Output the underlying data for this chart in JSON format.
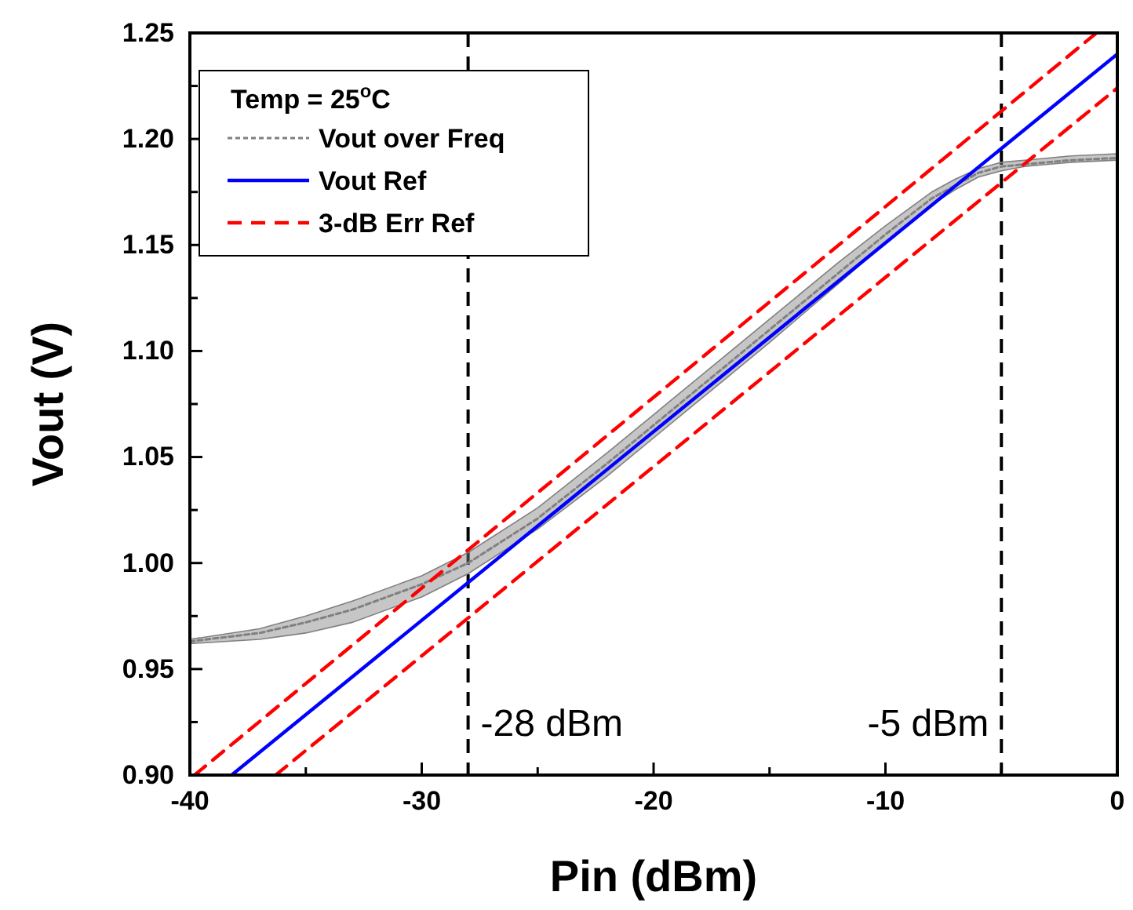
{
  "chart_data": {
    "type": "line",
    "xlabel": "Pin (dBm)",
    "ylabel": "Vout (V)",
    "legend_title": "Temp = 25$^{o}$C",
    "xlim": [
      -40,
      0
    ],
    "xticks": [
      -40,
      -30,
      -20,
      -10,
      0
    ],
    "ylim": [
      0.9,
      1.25
    ],
    "yticks": [
      {
        "value": 0.9,
        "label": "0.90"
      },
      0.95,
      {
        "value": 1.0,
        "label": "1.00"
      },
      1.05,
      {
        "value": 1.1,
        "label": "1.10"
      },
      1.15,
      {
        "value": 1.2,
        "label": "1.20"
      },
      1.25
    ],
    "grid": false,
    "legend": "top left",
    "series": [
      {
        "name": "Vout over Freq",
        "color": "#808080",
        "line_style": "dotted",
        "x": [
          -40,
          -37,
          -35,
          -33,
          -30,
          -28,
          -25,
          -22,
          -20,
          -17,
          -15,
          -12,
          -10,
          -8,
          -7,
          -6,
          -5,
          -4,
          -3,
          -2,
          0
        ],
        "values": [
          0.963,
          0.967,
          0.972,
          0.978,
          0.99,
          1.0,
          1.021,
          1.047,
          1.065,
          1.092,
          1.11,
          1.137,
          1.155,
          1.172,
          1.178,
          1.184,
          1.187,
          1.188,
          1.189,
          1.19,
          1.191
        ],
        "lower": [
          0.962,
          0.964,
          0.967,
          0.972,
          0.984,
          0.995,
          1.016,
          1.041,
          1.059,
          1.086,
          1.104,
          1.132,
          1.151,
          1.169,
          1.176,
          1.182,
          1.185,
          1.187,
          1.188,
          1.189,
          1.19
        ],
        "upper": [
          0.964,
          0.969,
          0.975,
          0.982,
          0.994,
          1.005,
          1.026,
          1.052,
          1.07,
          1.097,
          1.115,
          1.142,
          1.159,
          1.175,
          1.181,
          1.186,
          1.189,
          1.19,
          1.191,
          1.192,
          1.193
        ]
      },
      {
        "name": "Vout Ref",
        "color": "#0000ff",
        "line_style": "solid",
        "x": [
          -38.2,
          0
        ],
        "values": [
          0.9,
          1.24
        ]
      },
      {
        "name": "3-dB Err Ref",
        "color": "#ff0000",
        "line_style": "dashed",
        "x": [
          -39.8,
          -0.9
        ],
        "values": [
          0.9,
          1.25
        ]
      },
      {
        "color": "#ff0000",
        "line_style": "dashed",
        "x": [
          -36.3,
          0
        ],
        "values": [
          0.9,
          1.224
        ]
      }
    ],
    "ref_lines": [
      {
        "axis": "x",
        "value": -28,
        "label": "-28 dBm",
        "color": "#000000",
        "line_style": "dashed"
      },
      {
        "axis": "x",
        "value": -5,
        "label": "-5 dBm",
        "color": "#000000",
        "line_style": "dashed"
      }
    ]
  }
}
